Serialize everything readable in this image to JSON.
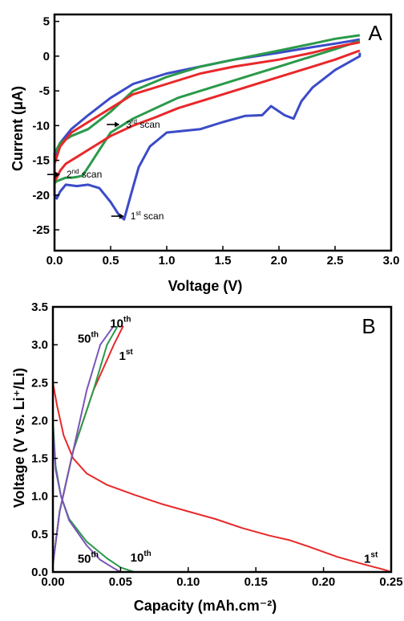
{
  "chart_data": [
    {
      "panel": "A",
      "type": "line",
      "panel_label": "A",
      "xlabel": "Voltage (V)",
      "ylabel": "Current (μA)",
      "xlim": [
        0.0,
        3.0
      ],
      "ylim": [
        -28,
        6
      ],
      "x_ticks": [
        "0.0",
        "0.5",
        "1.0",
        "1.5",
        "2.0",
        "2.5",
        "3.0"
      ],
      "y_ticks": [
        "5",
        "0",
        "-5",
        "-10",
        "-15",
        "-20",
        "-25"
      ],
      "x_tick_values": [
        0,
        0.5,
        1.0,
        1.5,
        2.0,
        2.5,
        3.0
      ],
      "y_tick_values": [
        5,
        0,
        -5,
        -10,
        -15,
        -20,
        -25
      ],
      "colors": {
        "first": "#3b4bc8",
        "second": "#2a9a4a",
        "third": "#e8282a"
      },
      "series": [
        {
          "color": "#3b4bc8",
          "x": [
            2.72,
            2.72,
            2.5,
            2.3,
            2.2,
            2.13,
            2.05,
            1.93,
            1.85,
            1.7,
            1.5,
            1.3,
            1.0,
            0.85,
            0.75,
            0.68,
            0.62,
            0.58,
            0.5,
            0.4,
            0.3,
            0.2,
            0.1,
            0.05,
            0.02,
            0.0,
            0.0,
            0.05,
            0.15,
            0.3,
            0.5,
            0.7,
            1.0,
            1.3,
            1.6,
            2.0,
            2.3,
            2.5,
            2.65,
            2.72
          ],
          "y": [
            0.5,
            0.0,
            -2.0,
            -4.5,
            -6.5,
            -9.0,
            -8.5,
            -7.2,
            -8.5,
            -8.6,
            -9.5,
            -10.5,
            -11.0,
            -13.0,
            -16.0,
            -20.0,
            -23.5,
            -23.0,
            -21.0,
            -19.0,
            -18.5,
            -18.7,
            -18.5,
            -19.5,
            -20.5,
            -20.0,
            -15.0,
            -12.5,
            -10.5,
            -8.5,
            -6.0,
            -4.0,
            -2.5,
            -1.5,
            -0.5,
            0.5,
            1.3,
            1.8,
            2.2,
            2.4
          ]
        },
        {
          "color": "#2a9a4a",
          "x": [
            2.72,
            2.5,
            2.2,
            2.0,
            1.7,
            1.4,
            1.1,
            0.9,
            0.7,
            0.5,
            0.4,
            0.3,
            0.25,
            0.2,
            0.15,
            0.1,
            0.05,
            0.02,
            0.0,
            0.0,
            0.05,
            0.15,
            0.3,
            0.5,
            0.7,
            1.0,
            1.3,
            1.6,
            2.0,
            2.3,
            2.5,
            2.72
          ],
          "y": [
            2.2,
            1.0,
            -0.5,
            -1.5,
            -3.0,
            -4.5,
            -6.0,
            -7.5,
            -9.0,
            -11.0,
            -13.5,
            -16.0,
            -17.2,
            -17.4,
            -17.5,
            -17.5,
            -17.8,
            -18.0,
            -18.3,
            -14.0,
            -12.5,
            -11.5,
            -10.5,
            -8.0,
            -5.0,
            -3.0,
            -1.5,
            -0.5,
            0.8,
            1.8,
            2.5,
            3.0
          ]
        },
        {
          "color": "#e8282a",
          "x": [
            2.72,
            2.5,
            2.2,
            2.0,
            1.7,
            1.4,
            1.1,
            0.9,
            0.7,
            0.5,
            0.4,
            0.3,
            0.2,
            0.1,
            0.05,
            0.02,
            0.0,
            0.0,
            0.05,
            0.15,
            0.3,
            0.5,
            0.7,
            1.0,
            1.3,
            1.6,
            2.0,
            2.3,
            2.5,
            2.72
          ],
          "y": [
            0.8,
            -0.5,
            -2.0,
            -3.0,
            -4.5,
            -6.0,
            -7.5,
            -8.8,
            -10.0,
            -11.5,
            -12.5,
            -13.5,
            -14.5,
            -15.5,
            -16.5,
            -17.5,
            -18.0,
            -15.5,
            -13.0,
            -11.0,
            -9.5,
            -7.5,
            -5.5,
            -4.0,
            -2.5,
            -1.5,
            -0.5,
            0.5,
            1.3,
            2.0
          ]
        }
      ],
      "annotations": [
        {
          "base": "1",
          "sup": "st",
          "word": " scan",
          "x": 0.62,
          "y": -23.5
        },
        {
          "base": "2",
          "sup": "nd",
          "word": " scan",
          "x": 0.05,
          "y": -17.5
        },
        {
          "base": "3",
          "sup": "rd",
          "word": " scan",
          "x": 0.58,
          "y": -10.3
        }
      ]
    },
    {
      "panel": "B",
      "type": "line",
      "panel_label": "B",
      "xlabel": "Capacity (mAh.cm⁻²)",
      "ylabel": "Voltage (V vs. Li⁺/Li)",
      "xlim": [
        0.0,
        0.25
      ],
      "ylim": [
        0.0,
        3.5
      ],
      "x_ticks": [
        "0.00",
        "0.05",
        "0.10",
        "0.15",
        "0.20",
        "0.25"
      ],
      "y_ticks": [
        "3.5",
        "3.0",
        "2.5",
        "2.0",
        "1.5",
        "1.0",
        "0.5",
        "0.0"
      ],
      "x_tick_values": [
        0,
        0.05,
        0.1,
        0.15,
        0.2,
        0.25
      ],
      "y_tick_values": [
        3.5,
        3.0,
        2.5,
        2.0,
        1.5,
        1.0,
        0.5,
        0.0
      ],
      "colors": {
        "first": "#e8282a",
        "tenth": "#2a9a4a",
        "fiftieth": "#7b55b8"
      },
      "series": [
        {
          "color": "#e8282a",
          "x": [
            0.0,
            0.003,
            0.008,
            0.015,
            0.025,
            0.04,
            0.06,
            0.08,
            0.1,
            0.12,
            0.14,
            0.16,
            0.175,
            0.19,
            0.21,
            0.23,
            0.245,
            0.25
          ],
          "y": [
            2.5,
            2.2,
            1.8,
            1.5,
            1.3,
            1.15,
            1.02,
            0.9,
            0.8,
            0.7,
            0.58,
            0.48,
            0.42,
            0.33,
            0.2,
            0.1,
            0.03,
            0.0
          ]
        },
        {
          "color": "#e8282a",
          "x": [
            0.0,
            0.005,
            0.015,
            0.03,
            0.045,
            0.052
          ],
          "y": [
            0.1,
            0.8,
            1.6,
            2.4,
            3.0,
            3.25
          ]
        },
        {
          "color": "#2a9a4a",
          "x": [
            0.0,
            0.002,
            0.006,
            0.012,
            0.025,
            0.04,
            0.05,
            0.06
          ],
          "y": [
            2.0,
            1.4,
            1.0,
            0.7,
            0.4,
            0.18,
            0.06,
            0.0
          ]
        },
        {
          "color": "#2a9a4a",
          "x": [
            0.0,
            0.005,
            0.015,
            0.03,
            0.04,
            0.048
          ],
          "y": [
            0.1,
            0.8,
            1.6,
            2.4,
            3.0,
            3.25
          ]
        },
        {
          "color": "#7b55b8",
          "x": [
            0.0,
            0.002,
            0.006,
            0.012,
            0.025,
            0.035,
            0.045,
            0.05
          ],
          "y": [
            1.9,
            1.35,
            1.0,
            0.68,
            0.35,
            0.16,
            0.05,
            0.0
          ]
        },
        {
          "color": "#7b55b8",
          "x": [
            0.0,
            0.005,
            0.015,
            0.025,
            0.035,
            0.045
          ],
          "y": [
            0.1,
            0.8,
            1.6,
            2.4,
            3.0,
            3.25
          ]
        }
      ],
      "labels": [
        {
          "base": "50",
          "sup": "th",
          "x": 0.026,
          "y": 3.03
        },
        {
          "base": "10",
          "sup": "th",
          "x": 0.05,
          "y": 3.23
        },
        {
          "base": "1",
          "sup": "st",
          "x": 0.054,
          "y": 2.8
        },
        {
          "base": "50",
          "sup": "th",
          "x": 0.026,
          "y": 0.12
        },
        {
          "base": "10",
          "sup": "th",
          "x": 0.065,
          "y": 0.14
        },
        {
          "base": "1",
          "sup": "st",
          "x": 0.235,
          "y": 0.12
        }
      ]
    }
  ]
}
